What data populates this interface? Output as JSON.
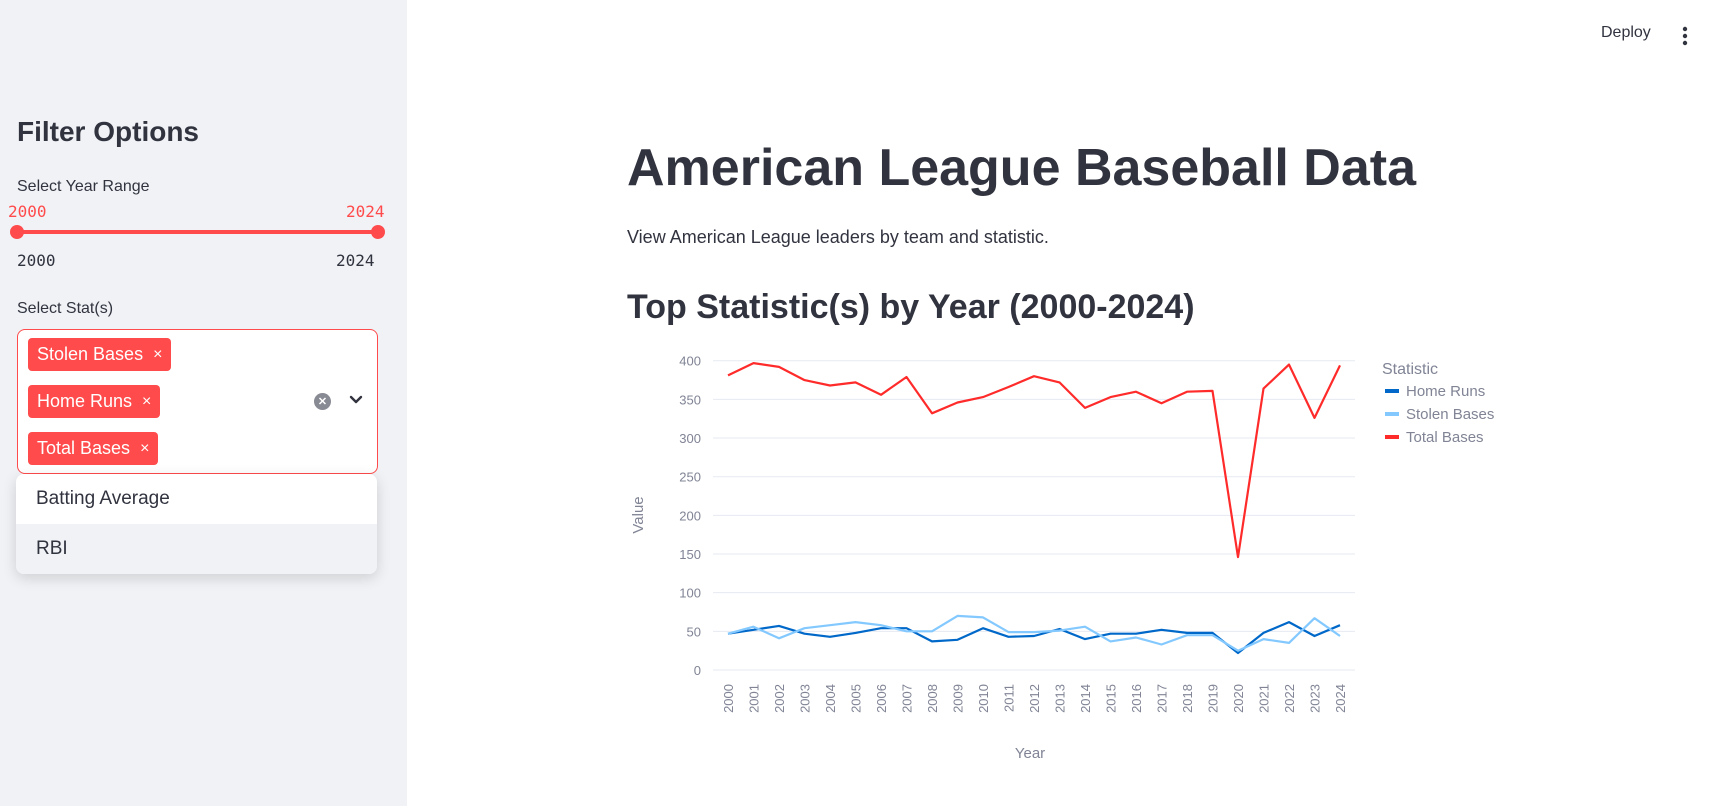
{
  "sidebar": {
    "title": "Filter Options",
    "year_range": {
      "label": "Select Year Range",
      "low": "2000",
      "high": "2024",
      "min": "2000",
      "max": "2024"
    },
    "stats": {
      "label": "Select Stat(s)",
      "selected": [
        "Stolen Bases",
        "Home Runs",
        "Total Bases"
      ],
      "remove_glyph": "×",
      "options": [
        "Batting Average",
        "RBI"
      ]
    }
  },
  "header": {
    "deploy_label": "Deploy"
  },
  "main": {
    "title": "American League Baseball Data",
    "description": "View American League leaders by team and statistic.",
    "chart_title": "Top Statistic(s) by Year (2000-2024)"
  },
  "colors": {
    "accent": "#ff4b4b",
    "home_runs": "#0068c9",
    "stolen_bases": "#83c9ff",
    "total_bases": "#ff2b2b"
  },
  "chart_data": {
    "type": "line",
    "xlabel": "Year",
    "ylabel": "Value",
    "x": [
      "2000",
      "2001",
      "2002",
      "2003",
      "2004",
      "2005",
      "2006",
      "2007",
      "2008",
      "2009",
      "2010",
      "2011",
      "2012",
      "2013",
      "2014",
      "2015",
      "2016",
      "2017",
      "2018",
      "2019",
      "2020",
      "2021",
      "2022",
      "2023",
      "2024"
    ],
    "yticks": [
      0,
      50,
      100,
      150,
      200,
      250,
      300,
      350,
      400
    ],
    "ylim": [
      0,
      410
    ],
    "legend_title": "Statistic",
    "legend_position": "right",
    "series": [
      {
        "name": "Home Runs",
        "color": "#0068c9",
        "values": [
          47,
          52,
          57,
          47,
          43,
          48,
          54,
          54,
          37,
          39,
          54,
          43,
          44,
          53,
          40,
          47,
          47,
          52,
          48,
          48,
          22,
          48,
          62,
          44,
          58
        ]
      },
      {
        "name": "Stolen Bases",
        "color": "#83c9ff",
        "values": [
          47,
          56,
          41,
          54,
          58,
          62,
          58,
          50,
          50,
          70,
          68,
          49,
          49,
          51,
          56,
          37,
          42,
          33,
          45,
          45,
          25,
          40,
          35,
          67,
          44
        ]
      },
      {
        "name": "Total Bases",
        "color": "#ff2b2b",
        "values": [
          381,
          397,
          392,
          375,
          368,
          372,
          356,
          379,
          332,
          346,
          353,
          366,
          380,
          372,
          339,
          353,
          360,
          345,
          360,
          361,
          146,
          364,
          395,
          326,
          394
        ]
      }
    ]
  }
}
